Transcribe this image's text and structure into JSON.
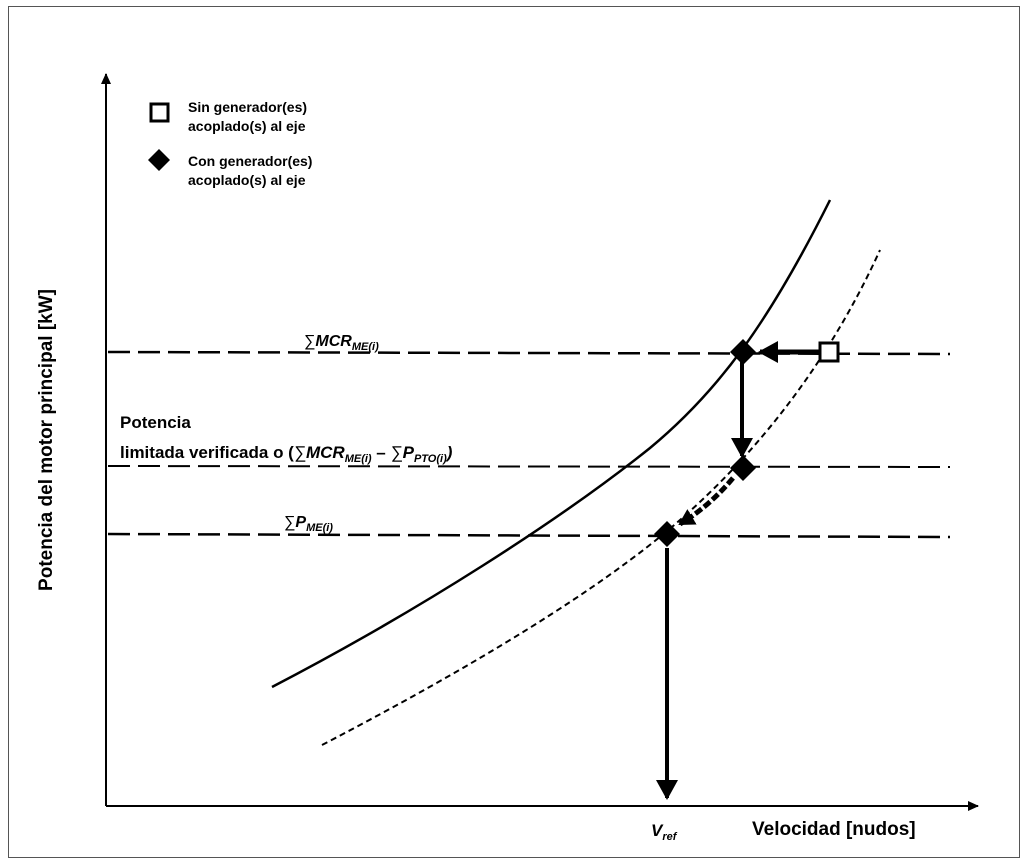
{
  "axes": {
    "y_label": "Potencia del motor principal [kW]",
    "x_label": "Velocidad [nudos]"
  },
  "legend": {
    "open_square": {
      "line1": "Sin generador(es)",
      "line2": "acoplado(s) al eje"
    },
    "filled_diamond": {
      "line1": "Con generador(es)",
      "line2": "acoplado(s) al eje"
    }
  },
  "levels": {
    "mcr": {
      "sum": "∑",
      "base": "MCR",
      "sub": "ME(i)"
    },
    "limited": {
      "line1": "Potencia",
      "line2_prefix": "limitada verificada o (",
      "sum1": "∑",
      "base1": "MCR",
      "sub1": "ME(i)",
      "minus": " – ",
      "sum2": "∑",
      "base2": "P",
      "sub2": "PTO(i)",
      "close": ")"
    },
    "pme": {
      "sum": "∑",
      "base": "P",
      "sub": "ME(i)"
    }
  },
  "vref": {
    "base": "V",
    "sub": "ref"
  },
  "colors": {
    "ink": "#000000",
    "frame": "#555555"
  }
}
